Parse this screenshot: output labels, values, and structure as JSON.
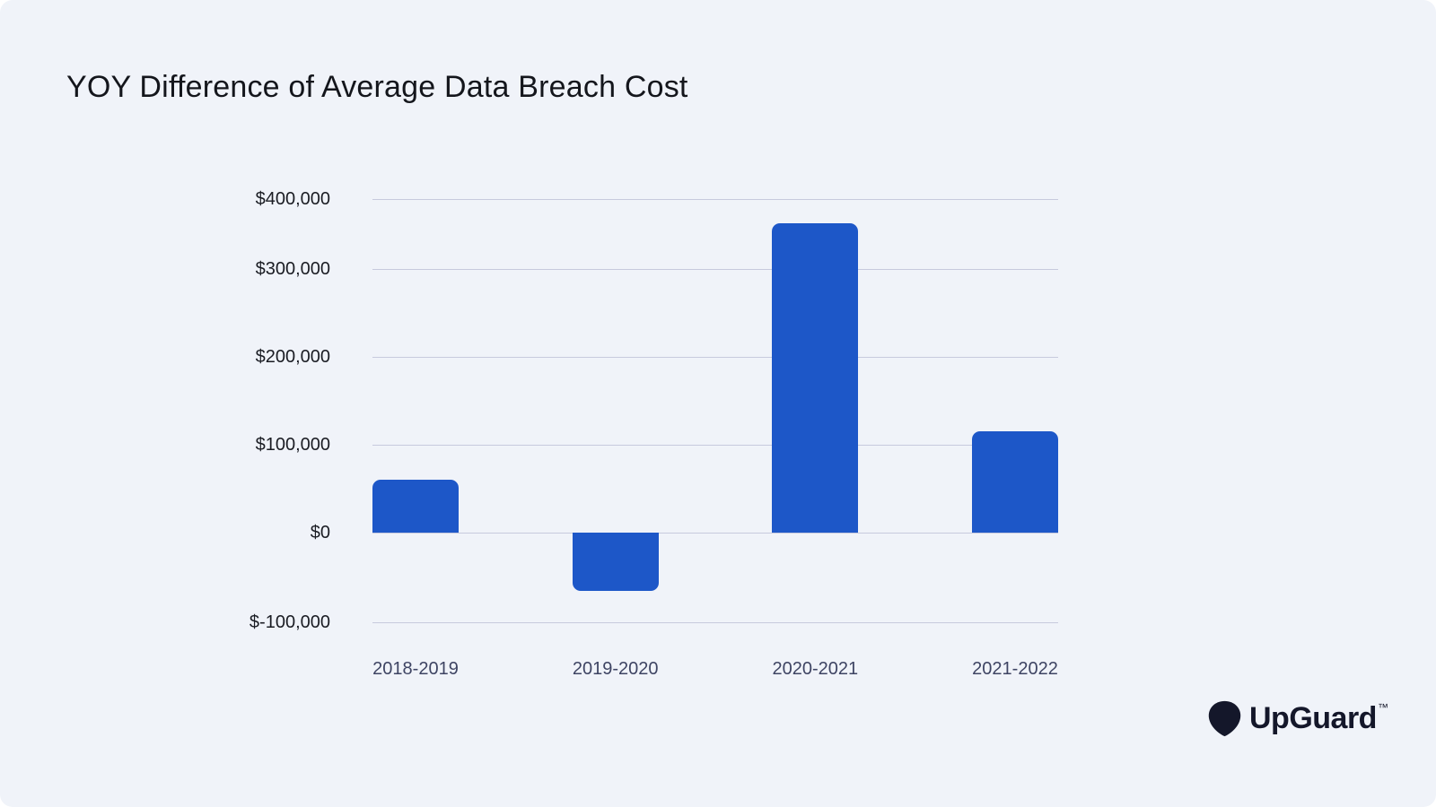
{
  "title": "YOY Difference of Average Data Breach Cost",
  "branding": {
    "logo_text": "UpGuard",
    "trademark": "™"
  },
  "colors": {
    "background": "#f0f3f9",
    "title": "#14161c",
    "bar": "#1d57c8",
    "gridline": "#c7cadd",
    "y_label": "#1a1c23",
    "x_label": "#3e4463",
    "logo": "#14172a"
  },
  "chart_data": {
    "type": "bar",
    "title": "YOY Difference of Average Data Breach Cost",
    "categories": [
      "2018-2019",
      "2019-2020",
      "2020-2021",
      "2021-2022"
    ],
    "values": [
      60000,
      -65000,
      365000,
      115000
    ],
    "series_name": "YOY difference of average data breach cost (USD)",
    "xlabel": "",
    "ylabel": "",
    "ylim": [
      -100000,
      400000
    ],
    "grid": true,
    "legend": false,
    "y_ticks": [
      {
        "value": 400000,
        "label": "$400,000"
      },
      {
        "value": 300000,
        "label": "$300,000"
      },
      {
        "value": 200000,
        "label": "$200,000"
      },
      {
        "value": 100000,
        "label": "$100,000"
      },
      {
        "value": 0,
        "label": "$0"
      },
      {
        "value": -100000,
        "label": "$-100,000"
      }
    ]
  }
}
